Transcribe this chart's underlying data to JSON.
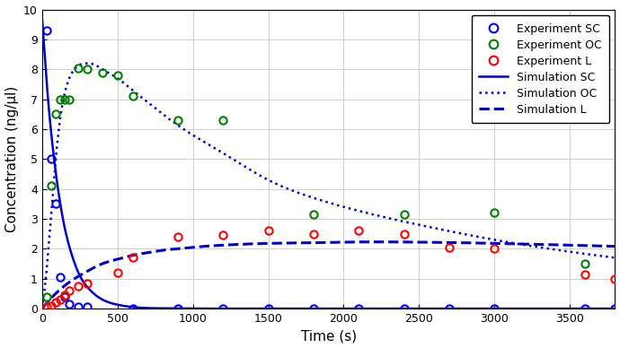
{
  "title": "",
  "xlabel": "Time (s)",
  "ylabel": "Concentration (ng/μl)",
  "xlim": [
    0,
    3800
  ],
  "ylim": [
    0,
    10
  ],
  "yticks": [
    0,
    1,
    2,
    3,
    4,
    5,
    6,
    7,
    8,
    9,
    10
  ],
  "xticks": [
    0,
    500,
    1000,
    1500,
    2000,
    2500,
    3000,
    3500
  ],
  "exp_SC_x": [
    30,
    60,
    90,
    120,
    150,
    180,
    240,
    300,
    600,
    900,
    1200,
    1500,
    1800,
    2100,
    2400,
    2700,
    3000,
    3600,
    3800
  ],
  "exp_SC_y": [
    9.3,
    5.0,
    3.5,
    1.05,
    0.4,
    0.15,
    0.05,
    0.05,
    0.0,
    0.0,
    0.0,
    0.0,
    0.0,
    0.0,
    0.0,
    0.0,
    0.0,
    0.0,
    0.0
  ],
  "exp_OC_x": [
    30,
    60,
    90,
    120,
    150,
    180,
    240,
    300,
    400,
    500,
    600,
    900,
    1200,
    1800,
    2400,
    3000,
    3600
  ],
  "exp_OC_y": [
    0.4,
    4.1,
    6.5,
    7.0,
    7.0,
    7.0,
    8.05,
    8.0,
    7.9,
    7.8,
    7.1,
    6.3,
    6.3,
    3.15,
    3.15,
    3.2,
    1.5
  ],
  "exp_L_x": [
    30,
    60,
    90,
    120,
    150,
    180,
    240,
    300,
    500,
    600,
    900,
    1200,
    1500,
    1800,
    2100,
    2400,
    2700,
    3000,
    3600,
    3800
  ],
  "exp_L_y": [
    0.05,
    0.1,
    0.2,
    0.3,
    0.45,
    0.6,
    0.75,
    0.85,
    1.2,
    1.7,
    2.4,
    2.45,
    2.6,
    2.5,
    2.6,
    2.5,
    2.05,
    2.0,
    1.15,
    1.0
  ],
  "sim_color": "#0000cc",
  "exp_SC_color": "blue",
  "exp_OC_color": "green",
  "exp_L_color": "red",
  "background_color": "#ffffff",
  "grid_color": "#d0d0d0",
  "sim_SC_t": [
    0,
    10,
    20,
    30,
    50,
    75,
    100,
    150,
    200,
    250,
    300,
    400,
    500,
    600,
    800,
    1000,
    1500,
    2000,
    2500,
    3000,
    3500,
    3800
  ],
  "sim_SC_y": [
    9.7,
    9.0,
    8.3,
    7.6,
    6.4,
    5.2,
    4.2,
    2.7,
    1.75,
    1.1,
    0.72,
    0.3,
    0.13,
    0.05,
    0.01,
    0.0,
    0.0,
    0.0,
    0.0,
    0.0,
    0.0,
    0.0
  ],
  "sim_OC_t": [
    0,
    50,
    100,
    150,
    200,
    250,
    300,
    350,
    400,
    500,
    600,
    700,
    800,
    1000,
    1200,
    1500,
    1800,
    2000,
    2500,
    3000,
    3500,
    3800
  ],
  "sim_OC_y": [
    0.0,
    2.5,
    5.5,
    7.2,
    7.9,
    8.15,
    8.2,
    8.15,
    8.0,
    7.7,
    7.3,
    6.9,
    6.5,
    5.8,
    5.2,
    4.3,
    3.7,
    3.4,
    2.8,
    2.3,
    1.9,
    1.7
  ],
  "sim_L_t": [
    0,
    100,
    200,
    300,
    400,
    500,
    600,
    700,
    800,
    900,
    1000,
    1200,
    1500,
    1800,
    2000,
    2500,
    3000,
    3500,
    3800
  ],
  "sim_L_y": [
    0.0,
    0.55,
    0.95,
    1.25,
    1.5,
    1.65,
    1.78,
    1.87,
    1.95,
    2.0,
    2.05,
    2.12,
    2.18,
    2.2,
    2.22,
    2.22,
    2.18,
    2.12,
    2.08
  ]
}
